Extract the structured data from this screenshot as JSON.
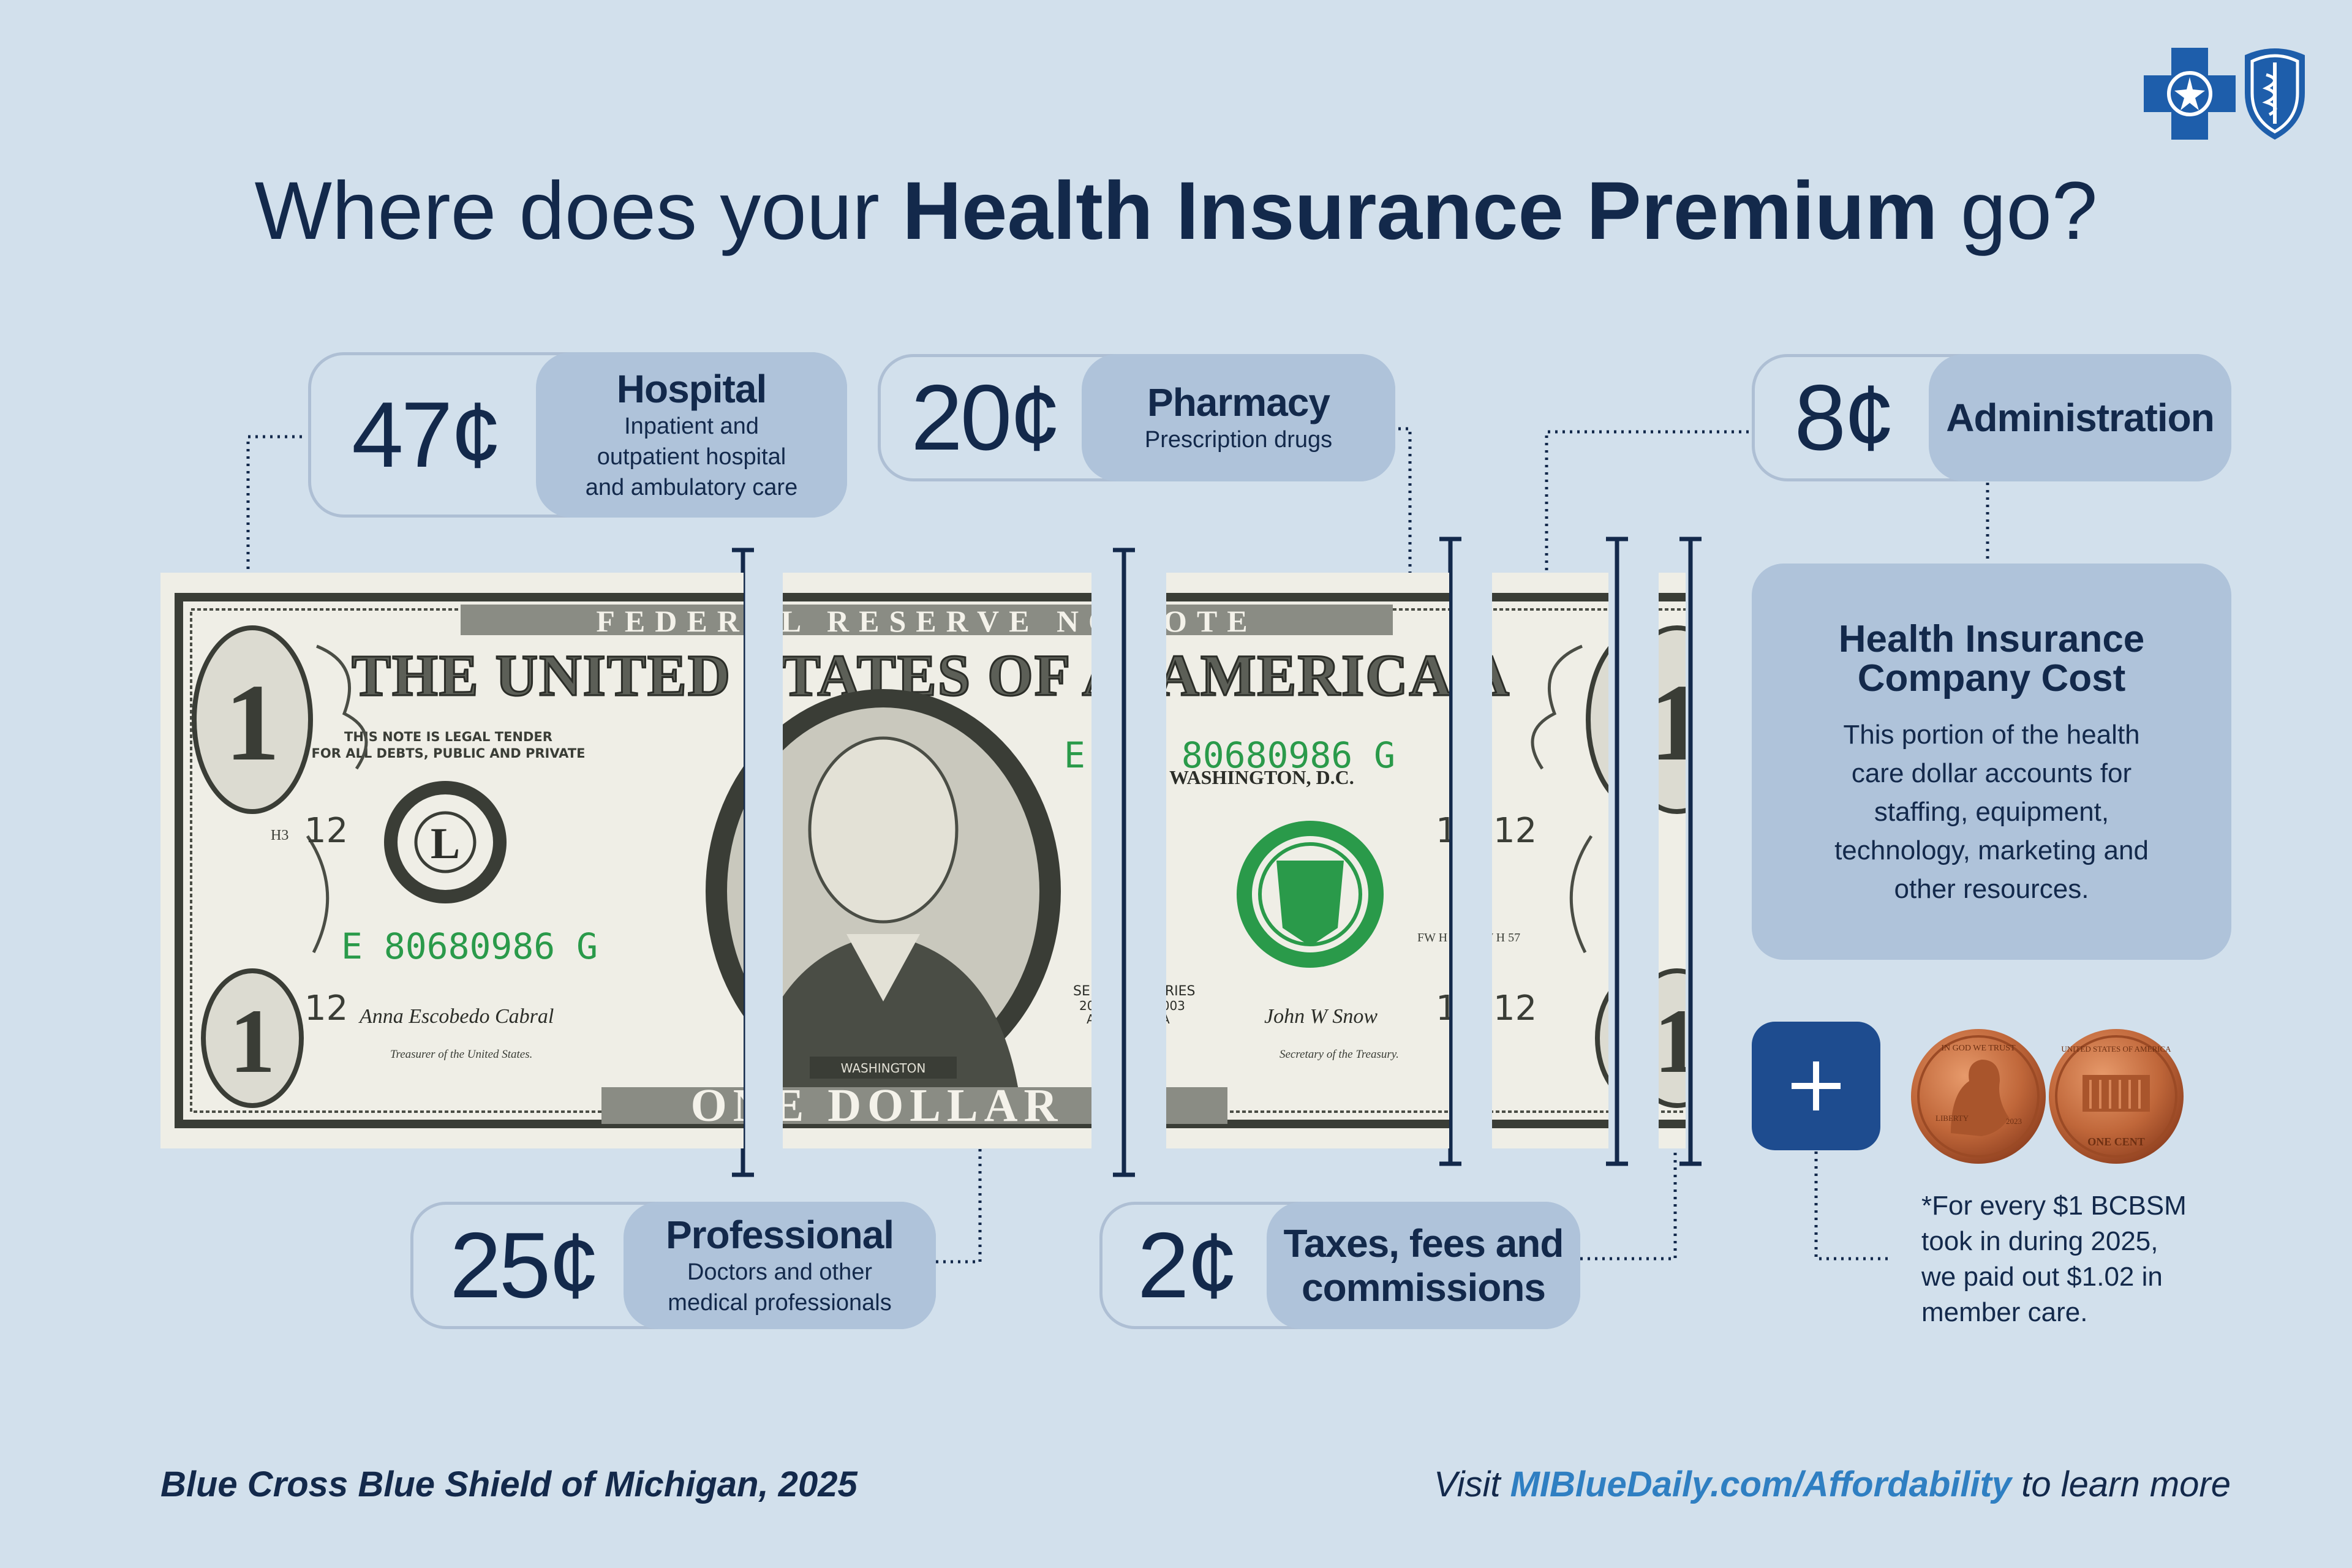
{
  "title": {
    "prefix": "Where does your ",
    "emphasis": "Health Insurance Premium",
    "suffix": " go?"
  },
  "chart_data": {
    "type": "bar",
    "unit": "¢",
    "categories": [
      "Hospital",
      "Professional",
      "Pharmacy",
      "Taxes, fees and commissions",
      "Administration"
    ],
    "values": [
      47,
      25,
      20,
      2,
      8
    ]
  },
  "cards": {
    "hospital": {
      "amount": "47¢",
      "title": "Hospital",
      "desc1": "Inpatient and",
      "desc2": "outpatient hospital",
      "desc3": "and ambulatory care"
    },
    "pharmacy": {
      "amount": "20¢",
      "title": "Pharmacy",
      "desc1": "Prescription drugs"
    },
    "administration": {
      "amount": "8¢",
      "title": "Administration"
    },
    "professional": {
      "amount": "25¢",
      "title": "Professional",
      "desc1": "Doctors and other",
      "desc2": "medical professionals"
    },
    "taxes": {
      "amount": "2¢",
      "title1": "Taxes, fees and",
      "title2": "commissions"
    }
  },
  "cost_box": {
    "title1": "Health Insurance",
    "title2": "Company Cost",
    "desc1": "This portion of the health",
    "desc2": "care dollar accounts for",
    "desc3": "staffing, equipment,",
    "desc4": "technology, marketing and",
    "desc5": "other resources."
  },
  "plus_icon": "plus-icon",
  "footnote": {
    "line1": "*For every $1 BCBSM",
    "line2": "took in during 2025,",
    "line3": "we paid out $1.02 in",
    "line4": "member care."
  },
  "footer": {
    "left": "Blue Cross Blue Shield of Michigan, 2025",
    "right_prefix": "Visit ",
    "right_link": "MIBlueDaily.com/Affordability",
    "right_suffix": " to learn more"
  },
  "bill": {
    "federal_reserve": "FEDERAL RESERVE NOTE",
    "united_states": "THE UNITED STATES OF AMERICA",
    "legal_tender1": "THIS NOTE IS LEGAL TENDER",
    "legal_tender2": "FOR ALL DEBTS, PUBLIC AND PRIVATE",
    "serial": "E 80680986 G",
    "serial_short": "E 80680986 G",
    "washington_dc": "WASHINGTON, D.C.",
    "denomination": "1",
    "plate": "12",
    "seal_letter": "L",
    "one_dollar": "ONE DOLLAR",
    "portrait_caption": "WASHINGTON",
    "series": "SERIES",
    "series_year": "2003",
    "series_letter": "A",
    "treasurer": "Treasurer of the United States.",
    "secretary": "Secretary of the Treasury.",
    "signature_left": "Anna Escobedo Cabral",
    "signature_right": "John W Snow",
    "h3": "H3",
    "fw": "FW H 57"
  },
  "penny": {
    "liberty": "LIBERTY",
    "year": "2023",
    "in_god": "IN GOD WE TRUST",
    "united_states": "UNITED STATES OF AMERICA",
    "one_cent": "ONE CENT"
  },
  "colors": {
    "background": "#d2e0ec",
    "navy": "#13294b",
    "label_fill": "#afc3da",
    "card_border": "#aebfd4",
    "plus_button": "#1e4c8f",
    "link": "#2f7fc2",
    "copper": "#c0673a",
    "bill_green": "#2a9a4a"
  }
}
